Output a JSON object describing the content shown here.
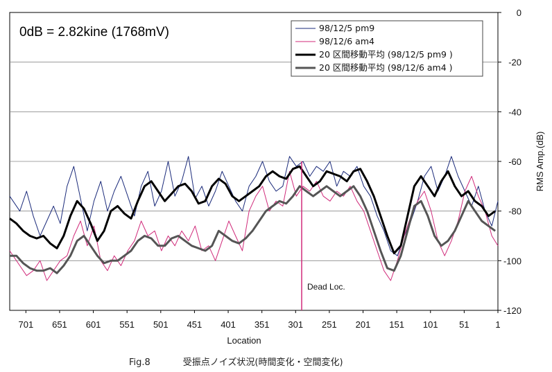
{
  "chart_data": {
    "type": "line",
    "xlabel": "Location",
    "ylabel": "RMS Amp.(dB)",
    "x_ticks": [
      701,
      651,
      601,
      551,
      501,
      451,
      401,
      351,
      301,
      251,
      201,
      151,
      101,
      51,
      1
    ],
    "x_reversed": true,
    "xlim": [
      725,
      1
    ],
    "y_ticks": [
      0,
      -20,
      -40,
      -60,
      -80,
      -100,
      -120
    ],
    "ylim": [
      -120,
      0
    ],
    "y_axis_side": "right",
    "grid": "horizontal",
    "legend_position": "top-right",
    "annotations": [
      {
        "text": "0dB = 2.82kine (1768mV)",
        "position": "top-left"
      },
      {
        "text": "Dead Loc.",
        "x": 292,
        "y": -110
      }
    ],
    "series": [
      {
        "name": "98/12/5 pm9",
        "style": "thin",
        "color": "#1a2a7a",
        "x": [
          725,
          710,
          700,
          690,
          680,
          670,
          660,
          650,
          640,
          630,
          620,
          610,
          600,
          590,
          580,
          570,
          560,
          550,
          540,
          530,
          520,
          510,
          500,
          490,
          480,
          470,
          460,
          450,
          440,
          430,
          420,
          410,
          400,
          390,
          380,
          370,
          360,
          350,
          340,
          330,
          320,
          310,
          300,
          290,
          280,
          270,
          260,
          250,
          240,
          230,
          220,
          210,
          200,
          190,
          180,
          170,
          160,
          150,
          140,
          130,
          120,
          110,
          100,
          90,
          80,
          70,
          60,
          50,
          40,
          30,
          20,
          10,
          1
        ],
        "y": [
          -74,
          -80,
          -72,
          -82,
          -90,
          -84,
          -78,
          -85,
          -70,
          -62,
          -75,
          -88,
          -76,
          -68,
          -80,
          -72,
          -66,
          -74,
          -82,
          -70,
          -64,
          -78,
          -72,
          -60,
          -74,
          -68,
          -58,
          -75,
          -70,
          -78,
          -72,
          -64,
          -70,
          -76,
          -80,
          -70,
          -66,
          -60,
          -68,
          -72,
          -70,
          -58,
          -62,
          -60,
          -66,
          -62,
          -64,
          -60,
          -70,
          -64,
          -66,
          -62,
          -70,
          -74,
          -82,
          -88,
          -96,
          -98,
          -90,
          -84,
          -76,
          -66,
          -62,
          -72,
          -66,
          -58,
          -66,
          -72,
          -78,
          -70,
          -80,
          -86,
          -76
        ]
      },
      {
        "name": "98/12/6 am4",
        "style": "thin",
        "color": "#d02a7a",
        "x": [
          725,
          710,
          700,
          690,
          680,
          670,
          660,
          650,
          640,
          630,
          620,
          610,
          600,
          590,
          580,
          570,
          560,
          550,
          540,
          530,
          520,
          510,
          500,
          490,
          480,
          470,
          460,
          450,
          440,
          430,
          420,
          410,
          400,
          390,
          380,
          370,
          360,
          350,
          340,
          330,
          320,
          310,
          300,
          290,
          280,
          270,
          260,
          250,
          240,
          230,
          220,
          210,
          200,
          190,
          180,
          170,
          160,
          150,
          140,
          130,
          120,
          110,
          100,
          90,
          80,
          70,
          60,
          50,
          40,
          30,
          20,
          10,
          1
        ],
        "y": [
          -96,
          -102,
          -106,
          -104,
          -100,
          -108,
          -104,
          -100,
          -98,
          -90,
          -84,
          -94,
          -86,
          -100,
          -104,
          -98,
          -102,
          -96,
          -92,
          -84,
          -90,
          -88,
          -96,
          -90,
          -94,
          -88,
          -92,
          -86,
          -96,
          -94,
          -100,
          -92,
          -84,
          -90,
          -96,
          -80,
          -74,
          -70,
          -80,
          -76,
          -78,
          -64,
          -74,
          -70,
          -72,
          -68,
          -74,
          -76,
          -72,
          -74,
          -70,
          -76,
          -80,
          -88,
          -96,
          -104,
          -108,
          -100,
          -90,
          -82,
          -76,
          -72,
          -80,
          -92,
          -98,
          -92,
          -84,
          -72,
          -66,
          -74,
          -80,
          -90,
          -94
        ]
      },
      {
        "name": "20 区間移動平均 (98/12/5 pm9 )",
        "style": "thick",
        "color": "#000000",
        "x": [
          725,
          715,
          705,
          695,
          685,
          675,
          665,
          655,
          645,
          635,
          625,
          615,
          605,
          595,
          585,
          575,
          565,
          555,
          545,
          535,
          525,
          515,
          505,
          495,
          485,
          475,
          465,
          455,
          445,
          435,
          425,
          415,
          405,
          395,
          385,
          375,
          365,
          355,
          345,
          335,
          325,
          315,
          305,
          295,
          285,
          275,
          265,
          255,
          245,
          235,
          225,
          215,
          205,
          195,
          185,
          175,
          165,
          155,
          145,
          135,
          125,
          115,
          105,
          95,
          85,
          75,
          65,
          55,
          45,
          35,
          25,
          15,
          5
        ],
        "y": [
          -83,
          -85,
          -88,
          -90,
          -91,
          -90,
          -93,
          -95,
          -90,
          -82,
          -76,
          -79,
          -85,
          -92,
          -88,
          -80,
          -78,
          -81,
          -83,
          -76,
          -70,
          -68,
          -72,
          -76,
          -73,
          -70,
          -69,
          -72,
          -77,
          -76,
          -70,
          -67,
          -69,
          -74,
          -76,
          -74,
          -72,
          -70,
          -66,
          -64,
          -66,
          -67,
          -63,
          -62,
          -66,
          -70,
          -68,
          -64,
          -65,
          -66,
          -68,
          -64,
          -63,
          -68,
          -74,
          -82,
          -90,
          -97,
          -94,
          -82,
          -70,
          -66,
          -70,
          -74,
          -68,
          -64,
          -70,
          -74,
          -72,
          -76,
          -78,
          -82,
          -80
        ]
      },
      {
        "name": "20 区間移動平均 (98/12/6 am4 )",
        "style": "thick",
        "color": "#555555",
        "x": [
          725,
          715,
          705,
          695,
          685,
          675,
          665,
          655,
          645,
          635,
          625,
          615,
          605,
          595,
          585,
          575,
          565,
          555,
          545,
          535,
          525,
          515,
          505,
          495,
          485,
          475,
          465,
          455,
          445,
          435,
          425,
          415,
          405,
          395,
          385,
          375,
          365,
          355,
          345,
          335,
          325,
          315,
          305,
          295,
          285,
          275,
          265,
          255,
          245,
          235,
          225,
          215,
          205,
          195,
          185,
          175,
          165,
          155,
          145,
          135,
          125,
          115,
          105,
          95,
          85,
          75,
          65,
          55,
          45,
          35,
          25,
          15,
          5
        ],
        "y": [
          -98,
          -98,
          -101,
          -103,
          -104,
          -104,
          -103,
          -105,
          -102,
          -98,
          -92,
          -90,
          -94,
          -98,
          -101,
          -100,
          -100,
          -98,
          -96,
          -92,
          -90,
          -91,
          -94,
          -94,
          -91,
          -90,
          -92,
          -94,
          -95,
          -96,
          -94,
          -88,
          -90,
          -92,
          -93,
          -91,
          -88,
          -84,
          -80,
          -78,
          -76,
          -77,
          -74,
          -70,
          -72,
          -74,
          -72,
          -70,
          -72,
          -74,
          -72,
          -70,
          -74,
          -80,
          -88,
          -96,
          -103,
          -104,
          -98,
          -88,
          -78,
          -76,
          -82,
          -90,
          -94,
          -92,
          -88,
          -82,
          -76,
          -80,
          -84,
          -86,
          -88
        ]
      }
    ]
  },
  "caption": {
    "fig": "Fig.8",
    "text": "受振点ノイズ状況(時間変化・空間変化)"
  }
}
